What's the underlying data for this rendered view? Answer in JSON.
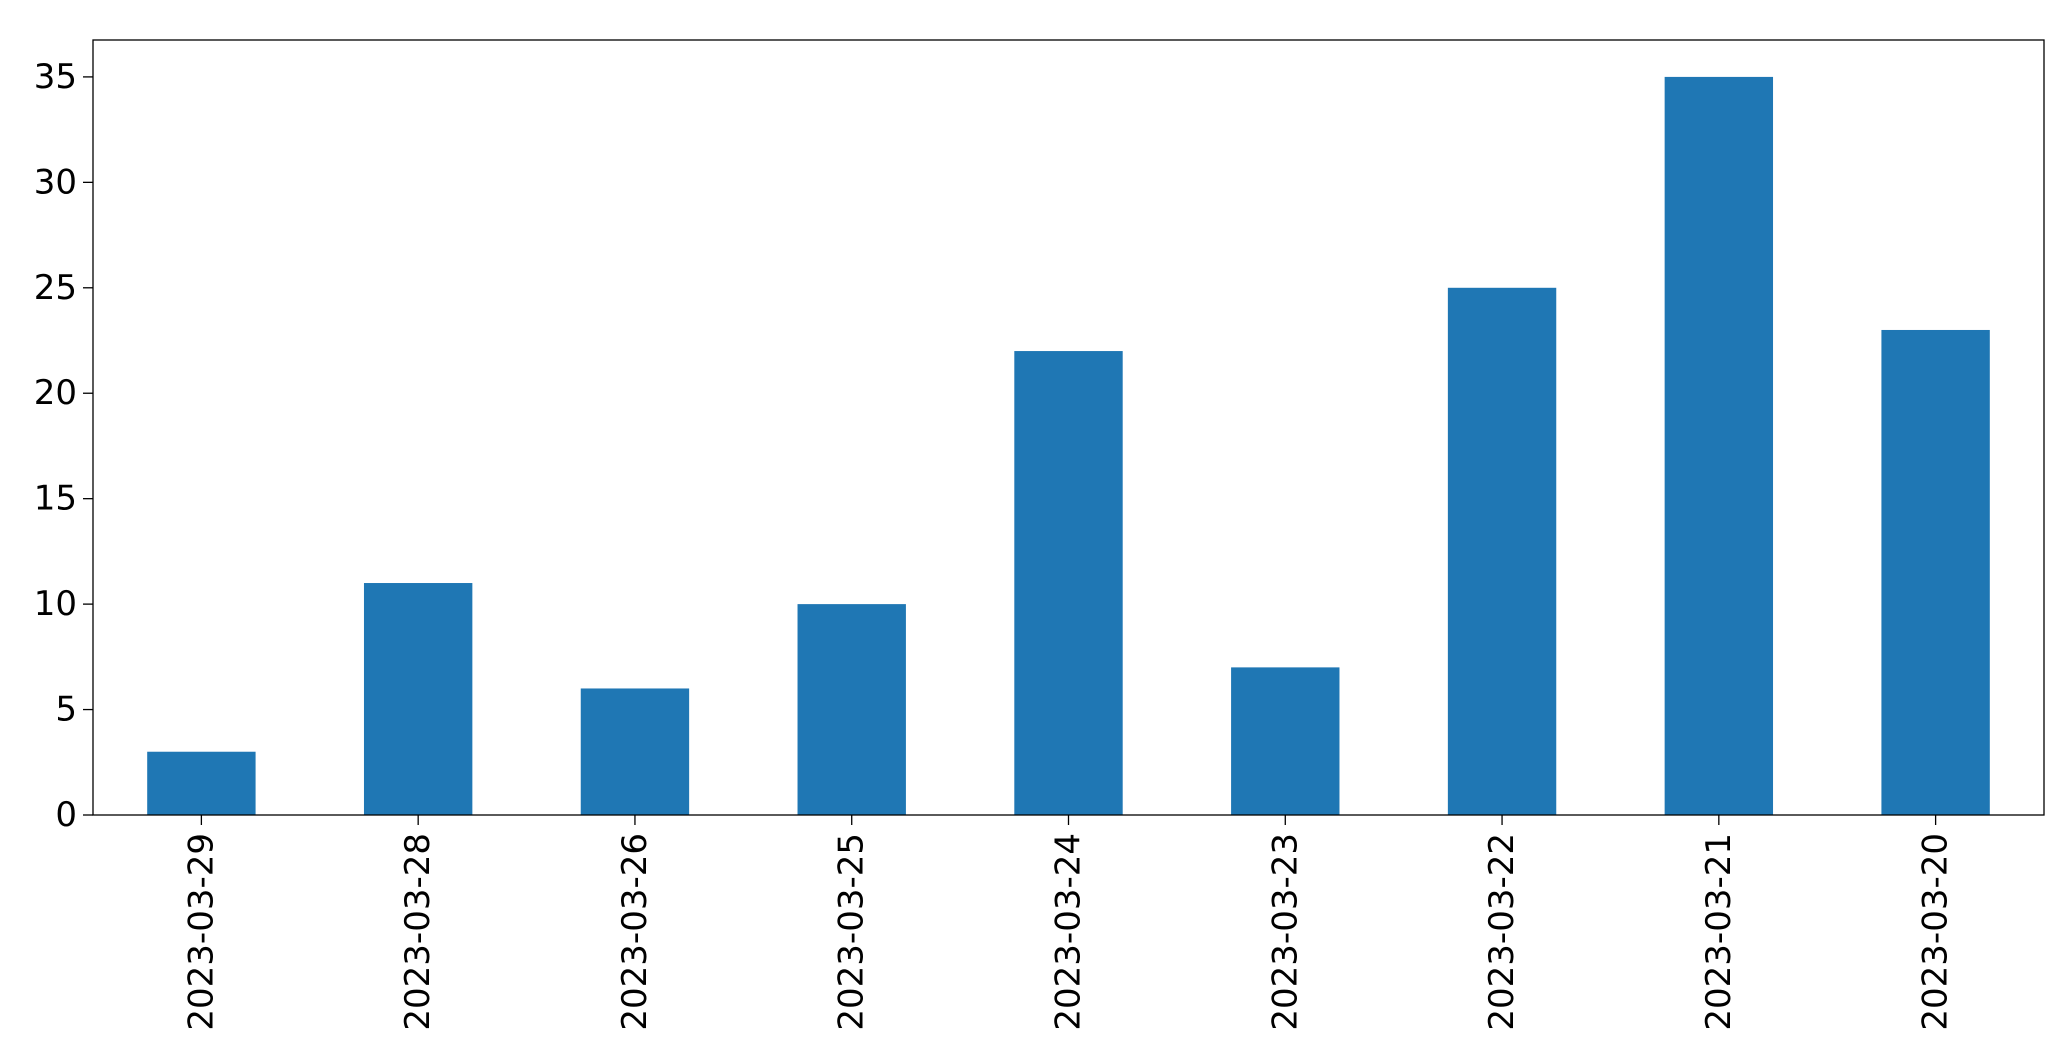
{
  "chart_data": {
    "type": "bar",
    "categories": [
      "2023-03-29",
      "2023-03-28",
      "2023-03-26",
      "2023-03-25",
      "2023-03-24",
      "2023-03-23",
      "2023-03-22",
      "2023-03-21",
      "2023-03-20"
    ],
    "values": [
      3,
      11,
      6,
      10,
      22,
      7,
      25,
      35,
      23
    ],
    "title": "",
    "xlabel": "",
    "ylabel": "",
    "ylim": [
      0,
      36.75
    ],
    "yticks": [
      0,
      5,
      10,
      15,
      20,
      25,
      30,
      35
    ],
    "bar_color": "#1f77b4",
    "grid": false,
    "legend": false
  }
}
